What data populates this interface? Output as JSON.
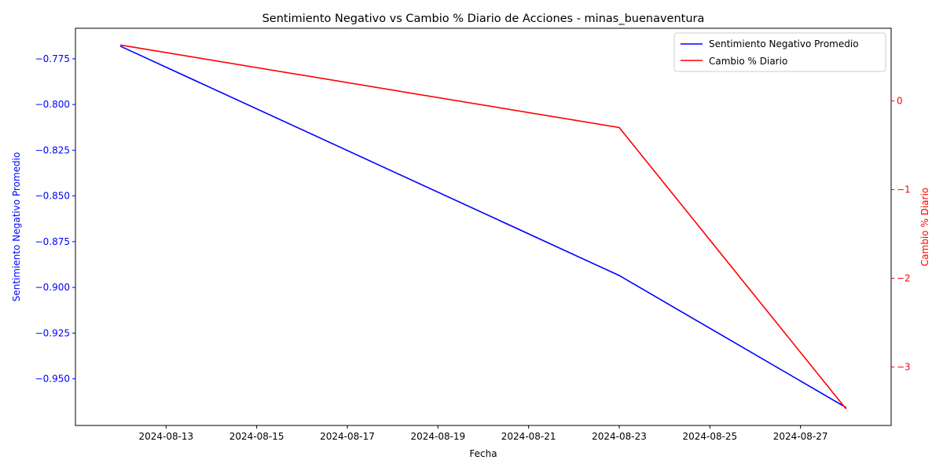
{
  "chart_data": {
    "type": "line",
    "title": "Sentimiento Negativo vs Cambio % Diario de Acciones - minas_buenaventura",
    "xlabel": "Fecha",
    "ylabel_left": "Sentimiento Negativo Promedio",
    "ylabel_right": "Cambio % Diario",
    "x_ticks": [
      "2024-08-13",
      "2024-08-15",
      "2024-08-17",
      "2024-08-19",
      "2024-08-21",
      "2024-08-23",
      "2024-08-25",
      "2024-08-27"
    ],
    "y_left_ticks": [
      "−0.775",
      "−0.800",
      "−0.825",
      "−0.850",
      "−0.875",
      "−0.900",
      "−0.925",
      "−0.950"
    ],
    "y_right_ticks": [
      "0",
      "−1",
      "−2",
      "−3"
    ],
    "x_range": [
      "2024-08-11",
      "2024-08-29"
    ],
    "ylim_left": [
      -0.9755,
      -0.7583
    ],
    "ylim_right": [
      -3.66,
      0.82
    ],
    "legend_position": "top-right",
    "series": [
      {
        "name": "Sentimiento Negativo Promedio",
        "axis": "left",
        "color": "#0000ff",
        "x": [
          "2024-08-12",
          "2024-08-23",
          "2024-08-28"
        ],
        "y": [
          -0.7682,
          -0.8935,
          -0.9656
        ]
      },
      {
        "name": "Cambio % Diario",
        "axis": "right",
        "color": "#ff0000",
        "x": [
          "2024-08-12",
          "2024-08-23",
          "2024-08-28"
        ],
        "y": [
          0.63,
          -0.3,
          -3.47
        ]
      }
    ],
    "left_axis_color": "#0000ff",
    "right_axis_color": "#ff0000",
    "grid": false
  }
}
